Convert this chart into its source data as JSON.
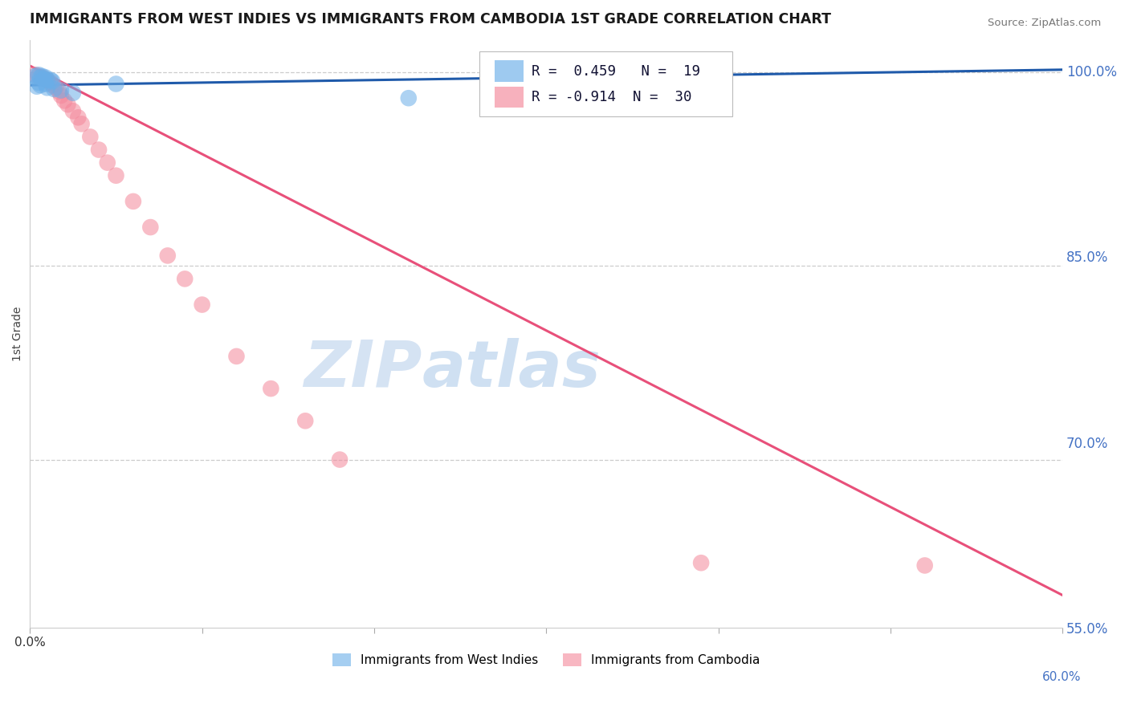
{
  "title": "IMMIGRANTS FROM WEST INDIES VS IMMIGRANTS FROM CAMBODIA 1ST GRADE CORRELATION CHART",
  "source": "Source: ZipAtlas.com",
  "ylabel": "1st Grade",
  "xlim": [
    0.0,
    0.6
  ],
  "ylim": [
    0.57,
    1.025
  ],
  "hlines": [
    1.0,
    0.85,
    0.7,
    0.55
  ],
  "ytick_right_vals": [
    1.0,
    0.85,
    0.7,
    0.55
  ],
  "ytick_right_labels": [
    "100.0%",
    "85.0%",
    "70.0%",
    "55.0%"
  ],
  "xtick_vals": [
    0.0,
    0.1,
    0.2,
    0.3,
    0.4,
    0.5,
    0.6
  ],
  "west_indies_color": "#6aaee8",
  "cambodia_color": "#f4879a",
  "west_indies_line_color": "#1f5aaa",
  "cambodia_line_color": "#e8507a",
  "R_west_indies": 0.459,
  "N_west_indies": 19,
  "R_cambodia": -0.914,
  "N_cambodia": 30,
  "watermark_color": "#c8daf0",
  "west_indies_x": [
    0.003,
    0.006,
    0.008,
    0.01,
    0.013,
    0.005,
    0.007,
    0.009,
    0.012,
    0.005,
    0.009,
    0.006,
    0.004,
    0.01,
    0.014,
    0.018,
    0.025,
    0.05,
    0.22
  ],
  "west_indies_y": [
    0.997,
    0.996,
    0.995,
    0.994,
    0.993,
    0.998,
    0.997,
    0.996,
    0.994,
    0.992,
    0.991,
    0.99,
    0.989,
    0.988,
    0.987,
    0.986,
    0.984,
    0.991,
    0.98
  ],
  "cambodia_x": [
    0.003,
    0.005,
    0.007,
    0.008,
    0.01,
    0.012,
    0.013,
    0.015,
    0.017,
    0.018,
    0.02,
    0.022,
    0.025,
    0.028,
    0.03,
    0.035,
    0.04,
    0.045,
    0.05,
    0.06,
    0.07,
    0.08,
    0.09,
    0.1,
    0.12,
    0.14,
    0.16,
    0.18,
    0.39,
    0.52
  ],
  "cambodia_y": [
    0.998,
    0.997,
    0.996,
    0.995,
    0.994,
    0.992,
    0.99,
    0.988,
    0.985,
    0.982,
    0.978,
    0.975,
    0.97,
    0.965,
    0.96,
    0.95,
    0.94,
    0.93,
    0.92,
    0.9,
    0.88,
    0.858,
    0.84,
    0.82,
    0.78,
    0.755,
    0.73,
    0.7,
    0.62,
    0.618
  ],
  "camb_line_x0": 0.0,
  "camb_line_y0": 1.005,
  "camb_line_x1": 0.6,
  "camb_line_y1": 0.595,
  "wi_line_x0": 0.0,
  "wi_line_y0": 0.99,
  "wi_line_x1": 0.6,
  "wi_line_y1": 1.002
}
